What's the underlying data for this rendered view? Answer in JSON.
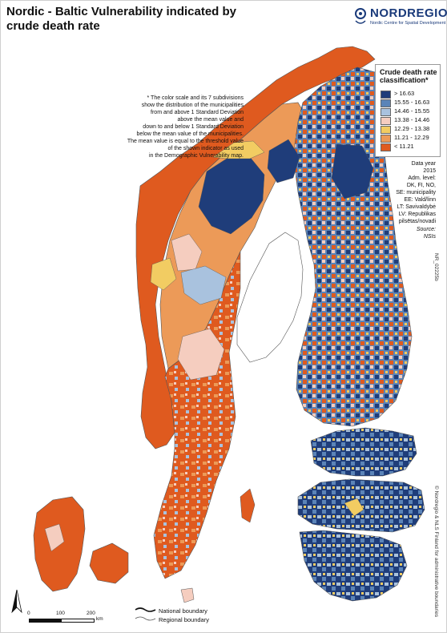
{
  "title": "Nordic - Baltic Vulnerability indicated by crude death rate",
  "logo": {
    "name": "NORDREGIO",
    "tagline": "Nordic Centre for Spatial Development"
  },
  "note_lines": [
    "* The color scale and its 7 subdivisions",
    "show the distribution of the municipalities",
    "from and above 1 Standard Deviation",
    "above the mean value and",
    "down to and below 1 Standard Deviation",
    "below the mean value of the municipalities.",
    "The mean value is equal to the threshold value",
    "of the shown indicator as used",
    "in the Demographic Vulnerability map."
  ],
  "legend": {
    "title_line1": "Crude death rate",
    "title_line2": "classification*",
    "items": [
      {
        "label": "> 16.63",
        "color": "#1f3d7a"
      },
      {
        "label": "15.55 - 16.63",
        "color": "#5b84b8"
      },
      {
        "label": "14.46 - 15.55",
        "color": "#a9c2de"
      },
      {
        "label": "13.38 - 14.46",
        "color": "#f5cdbf"
      },
      {
        "label": "12.29 - 13.38",
        "color": "#f2cc62"
      },
      {
        "label": "11.21 - 12.29",
        "color": "#ec9a58"
      },
      {
        "label": "< 11.21",
        "color": "#df5a1f"
      }
    ]
  },
  "metadata_lines": [
    "Data year",
    "2015",
    "Adm. level:",
    "DK, FI, NO,",
    "SE: municipality",
    "EE: Vald/linn",
    "LT: Savivaldybė",
    "LV: Republikas",
    "pilsētas/novadi"
  ],
  "source_lines": [
    "Source:",
    "NSIs"
  ],
  "map_id": "NR_02225b",
  "copyright": "© Nordregio & NLS Finland for administrative boundaries",
  "boundaries": {
    "national": "National boundary",
    "regional": "Regional boundary"
  },
  "scale": {
    "ticks": [
      "0",
      "100",
      "200"
    ],
    "unit": "km"
  },
  "colors": {
    "sea": "#ffffff",
    "land_outline": "#555555"
  }
}
